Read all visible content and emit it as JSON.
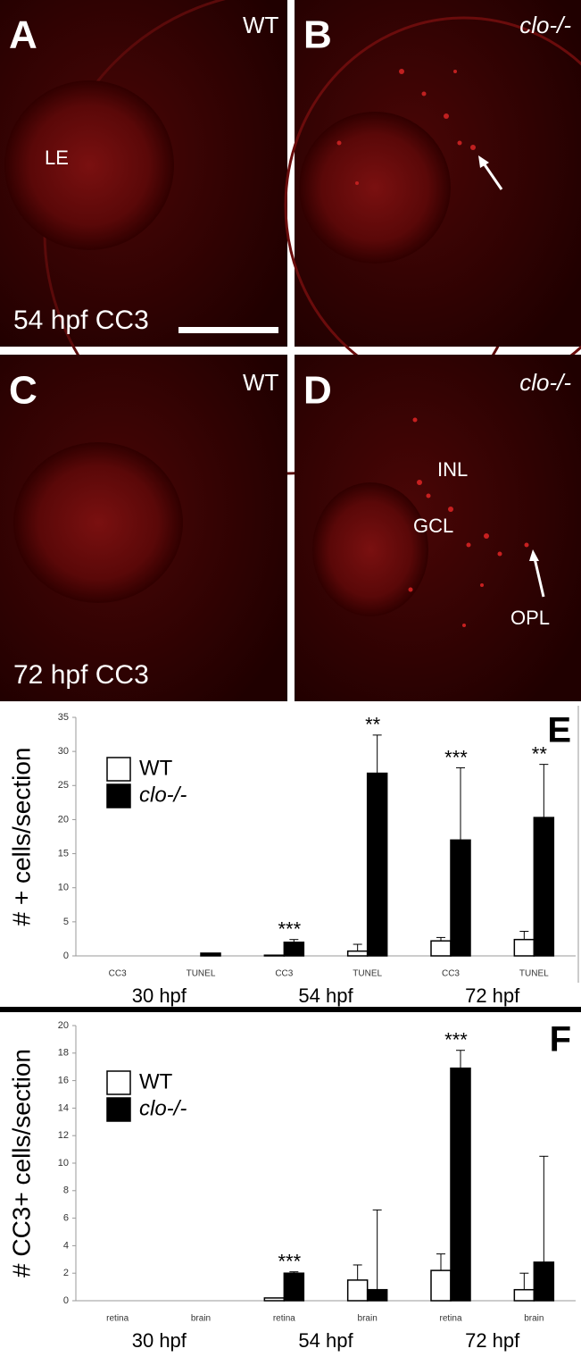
{
  "panels": [
    {
      "letter": "A",
      "genotype": "WT",
      "caption": "54 hpf CC3",
      "labels": [
        "LE"
      ]
    },
    {
      "letter": "B",
      "genotype": "clo-/-"
    },
    {
      "letter": "C",
      "genotype": "WT",
      "caption": "72 hpf CC3"
    },
    {
      "letter": "D",
      "genotype": "clo-/-",
      "labels": [
        "INL",
        "GCL",
        "OPL"
      ]
    }
  ],
  "chart_data": [
    {
      "type": "bar",
      "panel_label": "E",
      "y_label": "# + cells/section",
      "categories": [
        "CC3",
        "TUNEL",
        "CC3",
        "TUNEL",
        "CC3",
        "TUNEL"
      ],
      "groups": [
        "30 hpf",
        "54 hpf",
        "72 hpf"
      ],
      "significance": [
        null,
        null,
        "***",
        "**",
        "***",
        "**"
      ],
      "series": [
        {
          "name": "WT",
          "color": "#ffffff",
          "values": [
            0,
            0,
            0.1,
            0.7,
            2.2,
            2.4
          ],
          "errors": [
            null,
            null,
            null,
            1.0,
            0.5,
            1.2
          ]
        },
        {
          "name": "clo-/-",
          "color": "#000000",
          "values": [
            0,
            0.4,
            2.0,
            26.8,
            17.0,
            20.3
          ],
          "errors": [
            null,
            null,
            0.4,
            5.6,
            10.6,
            7.8
          ]
        }
      ],
      "ylim": [
        0,
        35
      ],
      "yticks": [
        0,
        5,
        10,
        15,
        20,
        25,
        30,
        35
      ]
    },
    {
      "type": "bar",
      "panel_label": "F",
      "y_label": "# CC3+ cells/section",
      "categories": [
        "retina",
        "brain",
        "retina",
        "brain",
        "retina",
        "brain"
      ],
      "groups": [
        "30 hpf",
        "54 hpf",
        "72 hpf"
      ],
      "significance": [
        null,
        null,
        "***",
        null,
        "***",
        null
      ],
      "series": [
        {
          "name": "WT",
          "color": "#ffffff",
          "values": [
            0,
            0,
            0.2,
            1.5,
            2.2,
            0.8
          ],
          "errors": [
            null,
            null,
            null,
            1.1,
            1.2,
            1.2
          ]
        },
        {
          "name": "clo-/-",
          "color": "#000000",
          "values": [
            0,
            0,
            2.0,
            0.8,
            16.9,
            2.8
          ],
          "errors": [
            null,
            null,
            0.1,
            5.8,
            1.3,
            7.7
          ]
        }
      ],
      "ylim": [
        0,
        20
      ],
      "yticks": [
        0,
        2,
        4,
        6,
        8,
        10,
        12,
        14,
        16,
        18,
        20
      ]
    }
  ]
}
